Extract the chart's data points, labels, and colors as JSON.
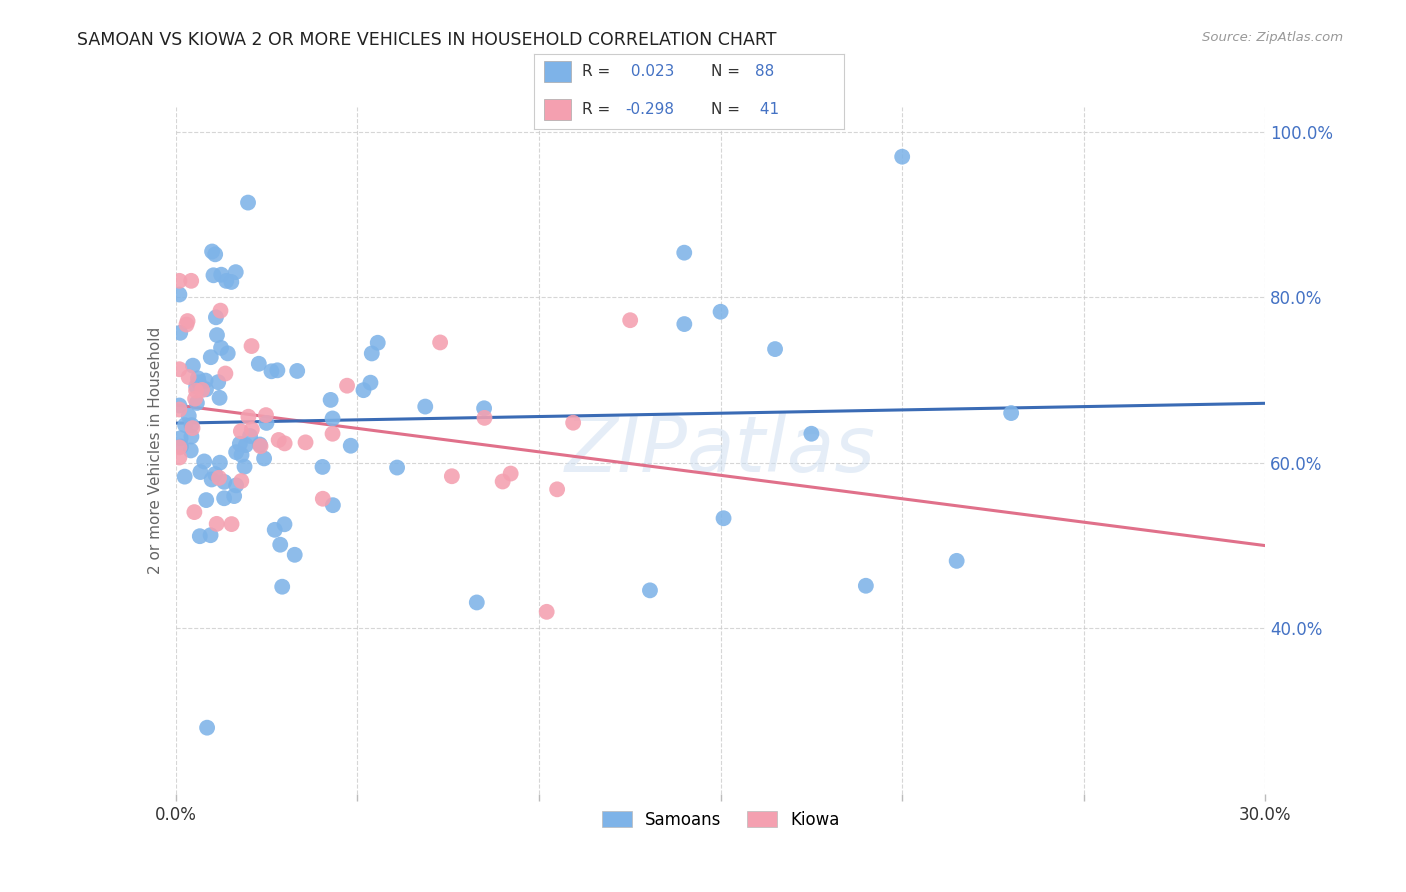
{
  "title": "SAMOAN VS KIOWA 2 OR MORE VEHICLES IN HOUSEHOLD CORRELATION CHART",
  "source": "Source: ZipAtlas.com",
  "ylabel": "2 or more Vehicles in Household",
  "watermark": "ZIPatlas",
  "xmin": 0.0,
  "xmax": 0.3,
  "ymin": 0.2,
  "ymax": 1.03,
  "samoans_R": 0.023,
  "samoans_N": 88,
  "kiowa_R": -0.298,
  "kiowa_N": 41,
  "xtick_vals": [
    0.0,
    0.05,
    0.1,
    0.15,
    0.2,
    0.25,
    0.3
  ],
  "xtick_labels": [
    "0.0%",
    "",
    "",
    "",
    "",
    "",
    "30.0%"
  ],
  "ytick_vals": [
    0.4,
    0.6,
    0.8,
    1.0
  ],
  "ytick_labels": [
    "40.0%",
    "60.0%",
    "80.0%",
    "100.0%"
  ],
  "samoans_color": "#7EB3E8",
  "kiowa_color": "#F4A0B0",
  "samoans_line_color": "#3A6BB5",
  "kiowa_line_color": "#E0708A",
  "samoans_line_y0": 0.648,
  "samoans_line_y1": 0.672,
  "kiowa_line_y0": 0.67,
  "kiowa_line_y1": 0.5
}
